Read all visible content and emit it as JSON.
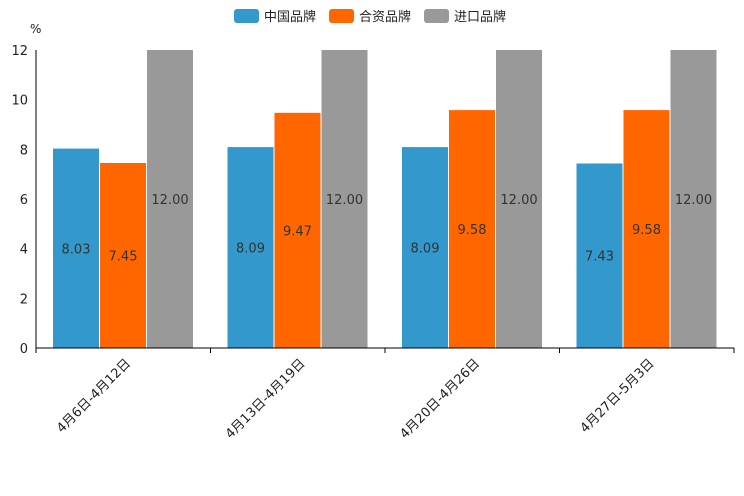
{
  "chart_data": {
    "type": "bar",
    "unit": "%",
    "categories": [
      "4月6日-4月12日",
      "4月13日-4月19日",
      "4月20日-4月26日",
      "4月27日-5月3日"
    ],
    "series": [
      {
        "name": "中国品牌",
        "color": "#3399cc",
        "values": [
          8.03,
          8.09,
          8.09,
          7.43
        ]
      },
      {
        "name": "合资品牌",
        "color": "#ff6600",
        "values": [
          7.45,
          9.47,
          9.58,
          9.58
        ]
      },
      {
        "name": "进口品牌",
        "color": "#999999",
        "values": [
          12.0,
          12.0,
          12.0,
          12.0
        ]
      }
    ],
    "ylim": [
      0,
      12
    ],
    "yticks": [
      0,
      2,
      4,
      6,
      8,
      10,
      12
    ],
    "legend_position": "top-center",
    "grid": false
  }
}
